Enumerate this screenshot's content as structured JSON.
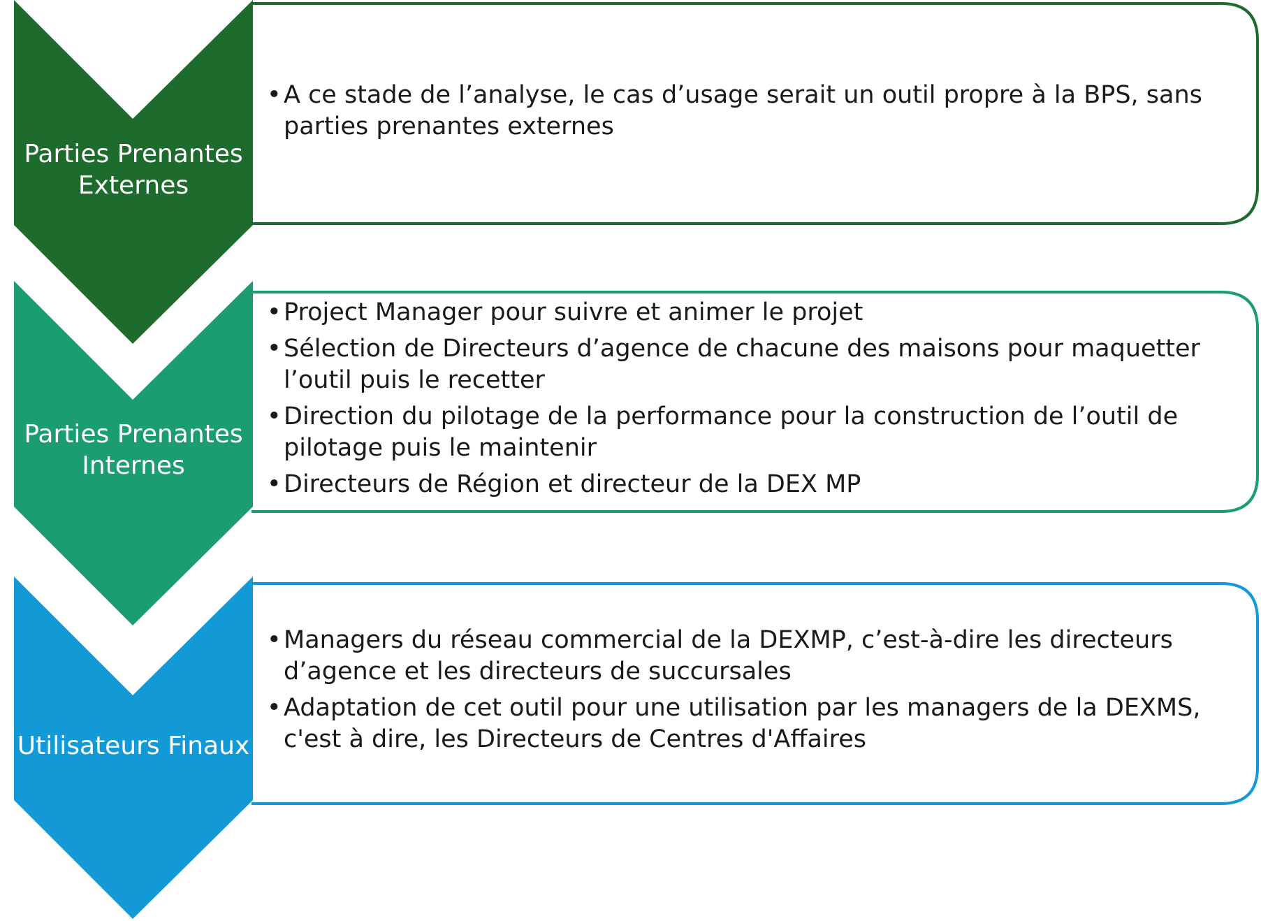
{
  "stages": [
    {
      "label_lines": [
        "Parties Prenantes",
        "Externes"
      ],
      "color": "#1e6b2e",
      "items": [
        "A ce stade de l’analyse, le cas d’usage serait un outil propre à la BPS, sans parties prenantes externes"
      ]
    },
    {
      "label_lines": [
        "Parties Prenantes",
        "Internes"
      ],
      "color": "#1b9c72",
      "items": [
        "Project Manager pour suivre et animer le projet",
        "Sélection de Directeurs d’agence de chacune des maisons pour maquetter l’outil puis le recetter",
        "Direction du pilotage de la performance pour la construction de l’outil de pilotage puis le maintenir",
        "Directeurs de Région et directeur de la DEX MP"
      ]
    },
    {
      "label_lines": [
        "Utilisateurs Finaux"
      ],
      "color": "#139ad6",
      "items": [
        "Managers du réseau commercial de la DEXMP, c’est-à-dire les directeurs d’agence et les directeurs de succursales",
        "Adaptation de cet outil pour une utilisation par les managers de la DEXMS, c'est à dire, les Directeurs de Centres d'Affaires"
      ]
    }
  ]
}
